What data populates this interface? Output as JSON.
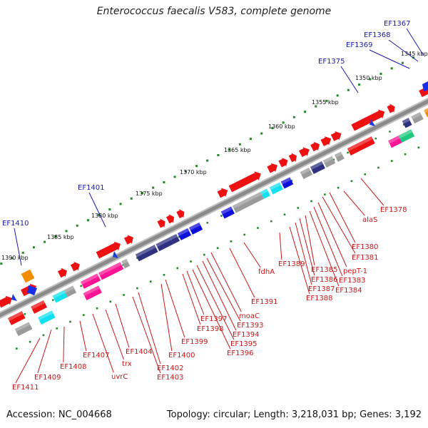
{
  "title": "Enterococcus faecalis V583, complete genome",
  "accession": "Accession: NC_004668",
  "summary": "Topology: circular; Length: 3,218,031 bp; Genes: 3,192",
  "colors": {
    "axis": "#8a8a8a",
    "tick": "#1f8a1f",
    "label_top": "#1a1aa8",
    "label_bottom": "#c81818",
    "gene_red": "#ee1111",
    "gene_blue": "#1010dd",
    "gene_navy": "#303080",
    "gene_cyan": "#10e0f0",
    "gene_magenta": "#ff1493",
    "gene_gray": "#9a9a9a",
    "gene_orange": "#f28c00",
    "gene_green": "#20c880"
  },
  "ruler_labels": [
    "1345 kbp",
    "1350 kbp",
    "1355 kbp",
    "1360 kbp",
    "1365 kbp",
    "1370 kbp",
    "1375 kbp",
    "1380 kbp",
    "1385 kbp",
    "1390 kbp"
  ],
  "top_labels": [
    "EF1367",
    "EF1368",
    "EF1369",
    "EF1375",
    "EF1401",
    "EF1410"
  ],
  "bottom_labels": [
    "alaS",
    "EF1378",
    "EF1380",
    "EF1381",
    "pepT-1",
    "EF1383",
    "EF1384",
    "EF1385",
    "EF1386",
    "EF1387",
    "EF1388",
    "EF1389",
    "fdhA",
    "EF1391",
    "moaC",
    "EF1393",
    "EF1394",
    "EF1395",
    "EF1396",
    "EF1397",
    "EF1398",
    "EF1399",
    "EF1400",
    "EF1402",
    "EF1403",
    "EF1404",
    "trx",
    "uvrC",
    "EF1407",
    "EF1408",
    "EF1409",
    "EF1411"
  ]
}
